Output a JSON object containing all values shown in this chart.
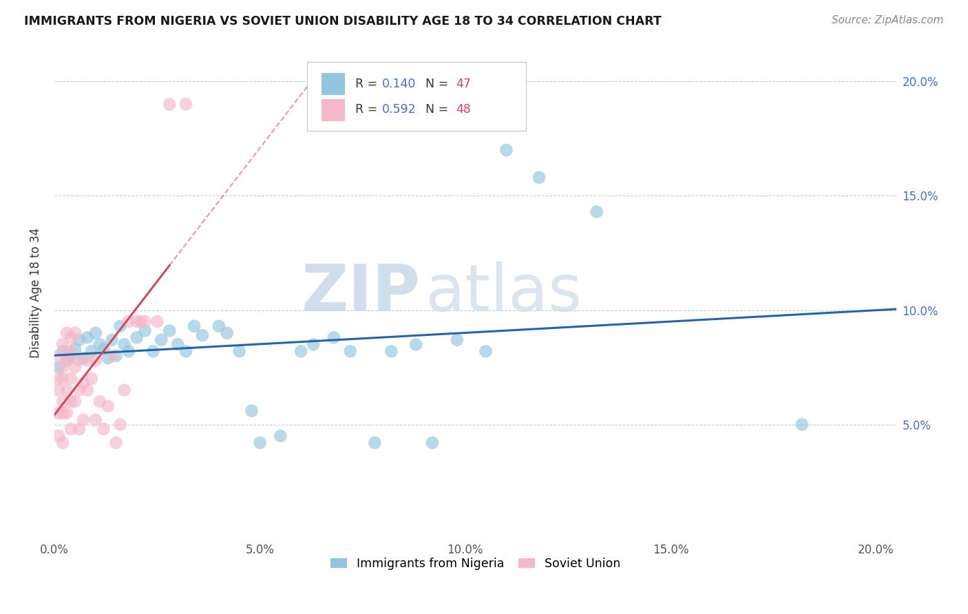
{
  "title": "IMMIGRANTS FROM NIGERIA VS SOVIET UNION DISABILITY AGE 18 TO 34 CORRELATION CHART",
  "source": "Source: ZipAtlas.com",
  "ylabel": "Disability Age 18 to 34",
  "xlim": [
    0.0,
    0.205
  ],
  "ylim": [
    0.0,
    0.215
  ],
  "xticks": [
    0.0,
    0.05,
    0.1,
    0.15,
    0.2
  ],
  "yticks": [
    0.05,
    0.1,
    0.15,
    0.2
  ],
  "xticklabels": [
    "0.0%",
    "5.0%",
    "10.0%",
    "15.0%",
    "20.0%"
  ],
  "yticklabels": [
    "5.0%",
    "10.0%",
    "15.0%",
    "20.0%"
  ],
  "nigeria_R": 0.14,
  "nigeria_N": 47,
  "soviet_R": 0.592,
  "soviet_N": 48,
  "nigeria_color": "#92c5de",
  "soviet_color": "#f4b8c8",
  "nigeria_line_color": "#2166ac",
  "soviet_line_color": "#d6485a",
  "watermark_zip": "ZIP",
  "watermark_atlas": "atlas",
  "nigeria_x": [
    0.001,
    0.002,
    0.003,
    0.004,
    0.005,
    0.006,
    0.007,
    0.008,
    0.009,
    0.01,
    0.011,
    0.012,
    0.013,
    0.014,
    0.015,
    0.016,
    0.017,
    0.018,
    0.02,
    0.022,
    0.024,
    0.026,
    0.028,
    0.03,
    0.032,
    0.034,
    0.036,
    0.04,
    0.042,
    0.045,
    0.048,
    0.05,
    0.055,
    0.06,
    0.063,
    0.068,
    0.072,
    0.078,
    0.082,
    0.088,
    0.092,
    0.098,
    0.105,
    0.11,
    0.118,
    0.132,
    0.182
  ],
  "nigeria_y": [
    0.075,
    0.082,
    0.078,
    0.08,
    0.083,
    0.087,
    0.079,
    0.088,
    0.082,
    0.09,
    0.085,
    0.083,
    0.079,
    0.087,
    0.08,
    0.093,
    0.085,
    0.082,
    0.088,
    0.091,
    0.082,
    0.087,
    0.091,
    0.085,
    0.082,
    0.093,
    0.089,
    0.093,
    0.09,
    0.082,
    0.056,
    0.042,
    0.045,
    0.082,
    0.085,
    0.088,
    0.082,
    0.042,
    0.082,
    0.085,
    0.042,
    0.087,
    0.082,
    0.17,
    0.158,
    0.143,
    0.05
  ],
  "soviet_x": [
    0.001,
    0.001,
    0.001,
    0.001,
    0.001,
    0.002,
    0.002,
    0.002,
    0.002,
    0.002,
    0.002,
    0.003,
    0.003,
    0.003,
    0.003,
    0.003,
    0.004,
    0.004,
    0.004,
    0.004,
    0.004,
    0.005,
    0.005,
    0.005,
    0.006,
    0.006,
    0.006,
    0.007,
    0.007,
    0.008,
    0.008,
    0.009,
    0.01,
    0.01,
    0.011,
    0.012,
    0.013,
    0.014,
    0.015,
    0.016,
    0.017,
    0.018,
    0.02,
    0.022,
    0.025,
    0.028,
    0.032,
    0.021
  ],
  "soviet_y": [
    0.065,
    0.08,
    0.055,
    0.045,
    0.07,
    0.075,
    0.06,
    0.085,
    0.07,
    0.055,
    0.042,
    0.08,
    0.065,
    0.078,
    0.09,
    0.055,
    0.07,
    0.082,
    0.06,
    0.088,
    0.048,
    0.075,
    0.09,
    0.06,
    0.065,
    0.078,
    0.048,
    0.068,
    0.052,
    0.065,
    0.078,
    0.07,
    0.052,
    0.078,
    0.06,
    0.048,
    0.058,
    0.08,
    0.042,
    0.05,
    0.065,
    0.095,
    0.095,
    0.095,
    0.095,
    0.19,
    0.19,
    0.095
  ]
}
